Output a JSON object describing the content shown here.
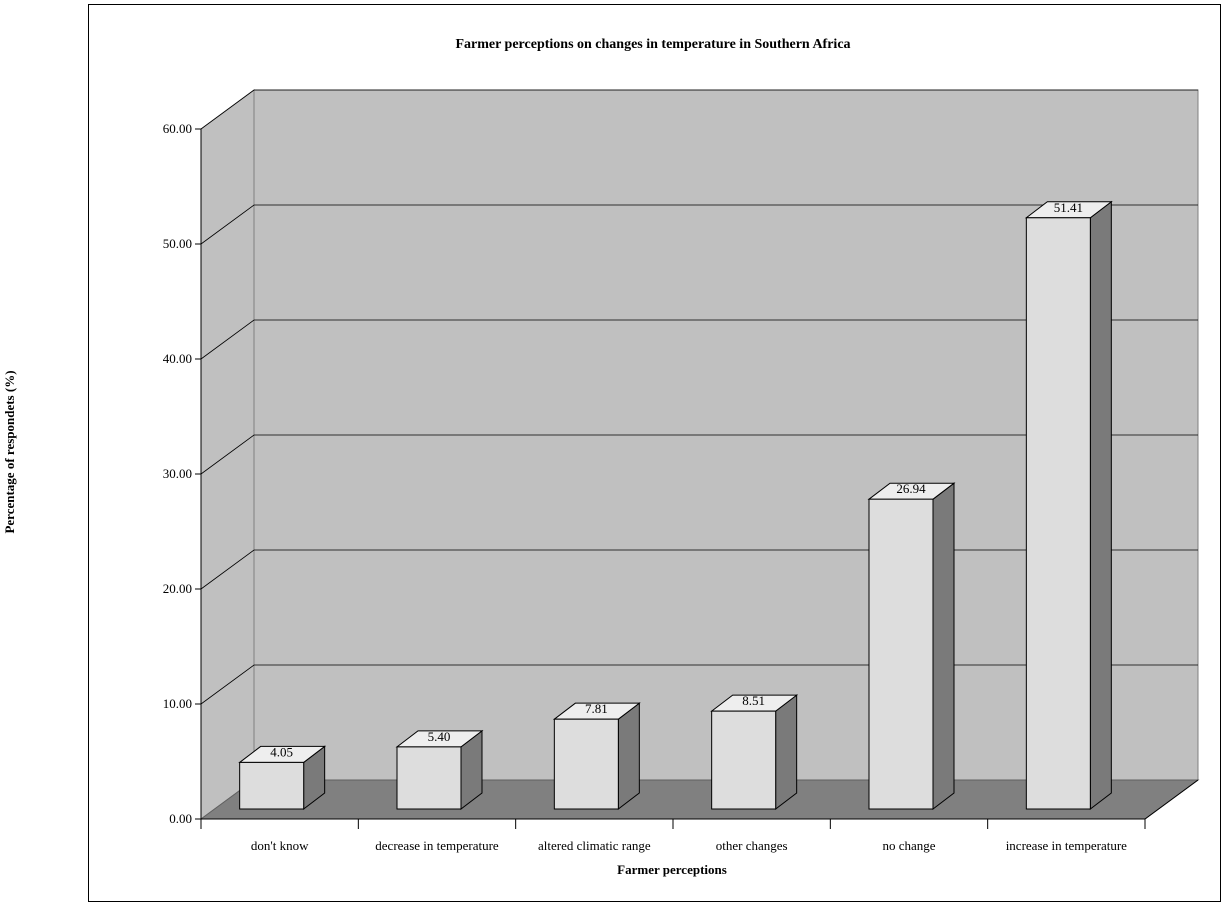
{
  "chart_data": {
    "type": "bar",
    "title": "Farmer perceptions on changes in temperature in Southern Africa",
    "xlabel": "Farmer perceptions",
    "ylabel": "Percentage of respondets (%)",
    "categories": [
      "don't know",
      "decrease in temperature",
      "altered climatic range",
      "other changes",
      "no change",
      "increase in temperature"
    ],
    "values": [
      4.05,
      5.4,
      7.81,
      8.51,
      26.94,
      51.41
    ],
    "data_labels": [
      "4.05",
      "5.40",
      "7.81",
      "8.51",
      "26.94",
      "51.41"
    ],
    "ylim": [
      0,
      60
    ],
    "yticks": [
      "0.00",
      "10.00",
      "20.00",
      "30.00",
      "40.00",
      "50.00",
      "60.00"
    ],
    "grid": true,
    "legend": "none",
    "colors": {
      "wall": "#c0c0c0",
      "floor": "#808080",
      "bar_front": "#dddddd",
      "bar_top": "#eeeeee",
      "bar_side": "#7a7a7a"
    }
  }
}
